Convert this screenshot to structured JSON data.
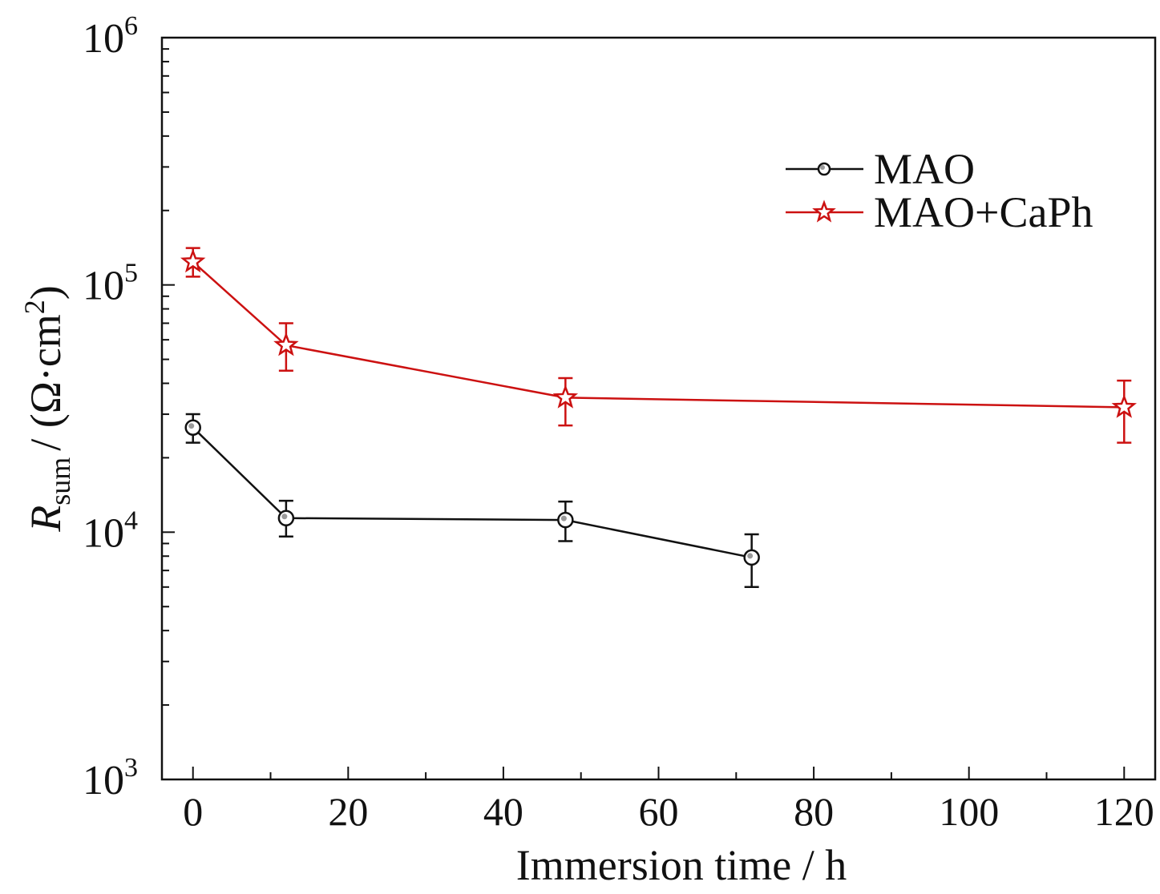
{
  "chart_data": {
    "type": "line",
    "xlabel": "Immersion time / h",
    "ylabel": {
      "symbol": "R",
      "subscript": "sum",
      "unit_prefix": "/ (Ω·cm",
      "unit_sup": "2",
      "unit_suffix": ")"
    },
    "xlim": [
      -4,
      124
    ],
    "ylim": [
      1000,
      1000000
    ],
    "yscale": "log",
    "x_ticks": [
      0,
      20,
      40,
      60,
      80,
      100,
      120
    ],
    "x_tick_labels": [
      "0",
      "20",
      "40",
      "60",
      "80",
      "100",
      "120"
    ],
    "y_ticks": [
      {
        "value": 1000,
        "base": "10",
        "exp": "3"
      },
      {
        "value": 10000,
        "base": "10",
        "exp": "4"
      },
      {
        "value": 100000,
        "base": "10",
        "exp": "5"
      },
      {
        "value": 1000000,
        "base": "10",
        "exp": "6"
      }
    ],
    "legend_position": "top-right",
    "series": [
      {
        "name": "MAO",
        "color": "#111111",
        "marker": "circle",
        "points": [
          {
            "x": 0,
            "y": 26500,
            "err_low": 23000,
            "err_high": 30000
          },
          {
            "x": 12,
            "y": 11400,
            "err_low": 9600,
            "err_high": 13400
          },
          {
            "x": 48,
            "y": 11200,
            "err_low": 9200,
            "err_high": 13300
          },
          {
            "x": 72,
            "y": 7900,
            "err_low": 6000,
            "err_high": 9800
          }
        ]
      },
      {
        "name": "MAO+CaPh",
        "color": "#cc1111",
        "marker": "star",
        "points": [
          {
            "x": 0,
            "y": 124000,
            "err_low": 108000,
            "err_high": 141000
          },
          {
            "x": 12,
            "y": 57000,
            "err_low": 45000,
            "err_high": 70000
          },
          {
            "x": 48,
            "y": 35000,
            "err_low": 27000,
            "err_high": 42000
          },
          {
            "x": 120,
            "y": 32000,
            "err_low": 23000,
            "err_high": 41000
          }
        ]
      }
    ]
  }
}
